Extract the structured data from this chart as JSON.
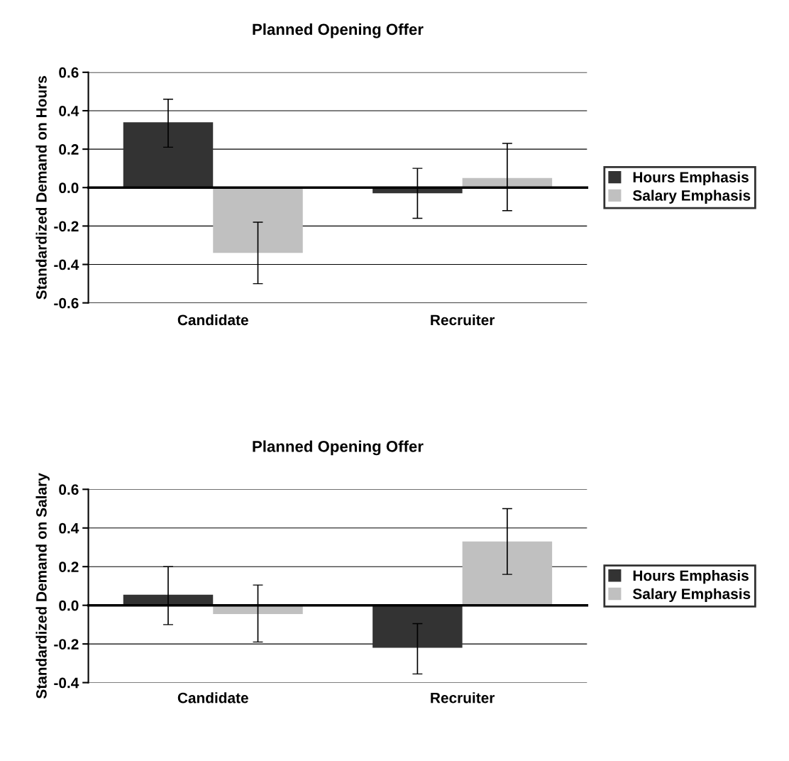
{
  "chart_data": [
    {
      "type": "bar",
      "title": "Planned Opening Offer",
      "ylabel": "Standardized Demand on Hours",
      "categories": [
        "Candidate",
        "Recruiter"
      ],
      "series": [
        {
          "name": "Hours Emphasis",
          "color": "#333333",
          "values": [
            0.34,
            -0.03
          ],
          "errors": [
            [
              0.21,
              0.46
            ],
            [
              -0.16,
              0.1
            ]
          ]
        },
        {
          "name": "Salary Emphasis",
          "color": "#c0c0c0",
          "values": [
            -0.34,
            0.05
          ],
          "errors": [
            [
              -0.5,
              -0.18
            ],
            [
              -0.12,
              0.23
            ]
          ]
        }
      ],
      "ylim": [
        -0.6,
        0.6
      ],
      "yticks": [
        {
          "value": -0.6,
          "label": "-0.6"
        },
        {
          "value": -0.4,
          "label": "-0.4"
        },
        {
          "value": -0.2,
          "label": "-0.2"
        },
        {
          "value": 0.0,
          "label": "0.0"
        },
        {
          "value": 0.2,
          "label": "0.2"
        },
        {
          "value": 0.4,
          "label": "0.4"
        },
        {
          "value": 0.6,
          "label": "0.6"
        }
      ],
      "grid": "y",
      "legend": "right"
    },
    {
      "type": "bar",
      "title": "Planned Opening Offer",
      "ylabel": "Standardized Demand on Salary",
      "categories": [
        "Candidate",
        "Recruiter"
      ],
      "series": [
        {
          "name": "Hours Emphasis",
          "color": "#333333",
          "values": [
            0.055,
            -0.22
          ],
          "errors": [
            [
              -0.1,
              0.2
            ],
            [
              -0.355,
              -0.095
            ]
          ]
        },
        {
          "name": "Salary Emphasis",
          "color": "#c0c0c0",
          "values": [
            -0.045,
            0.33
          ],
          "errors": [
            [
              -0.19,
              0.105
            ],
            [
              0.16,
              0.5
            ]
          ]
        }
      ],
      "ylim": [
        -0.4,
        0.6
      ],
      "yticks": [
        {
          "value": -0.4,
          "label": "-0.4"
        },
        {
          "value": -0.2,
          "label": "-0.2"
        },
        {
          "value": 0.0,
          "label": "0.0"
        },
        {
          "value": 0.2,
          "label": "0.2"
        },
        {
          "value": 0.4,
          "label": "0.4"
        },
        {
          "value": 0.6,
          "label": "0.6"
        }
      ],
      "grid": "y",
      "legend": "right"
    }
  ]
}
